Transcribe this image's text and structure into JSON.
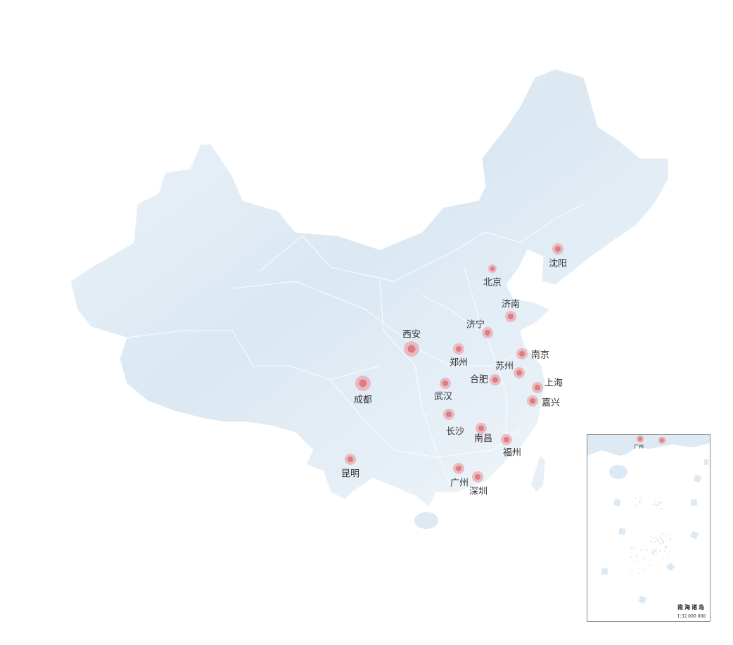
{
  "map": {
    "region": "China",
    "land_color": "#dde9f3",
    "border_color": "#ffffff",
    "marker_color": "#e07b84",
    "marker_halo_color": "#e8a9ae",
    "cities": [
      {
        "name": "沈阳"
      },
      {
        "name": "北京"
      },
      {
        "name": "济南"
      },
      {
        "name": "济宁"
      },
      {
        "name": "西安"
      },
      {
        "name": "郑州"
      },
      {
        "name": "南京"
      },
      {
        "name": "苏州"
      },
      {
        "name": "合肥"
      },
      {
        "name": "上海"
      },
      {
        "name": "成都"
      },
      {
        "name": "武汉"
      },
      {
        "name": "嘉兴"
      },
      {
        "name": "长沙"
      },
      {
        "name": "南昌"
      },
      {
        "name": "福州"
      },
      {
        "name": "昆明"
      },
      {
        "name": "广州"
      },
      {
        "name": "深圳"
      }
    ]
  },
  "inset": {
    "title": "南海诸岛",
    "scale": "1:32 000 000",
    "city_label": "广州"
  }
}
